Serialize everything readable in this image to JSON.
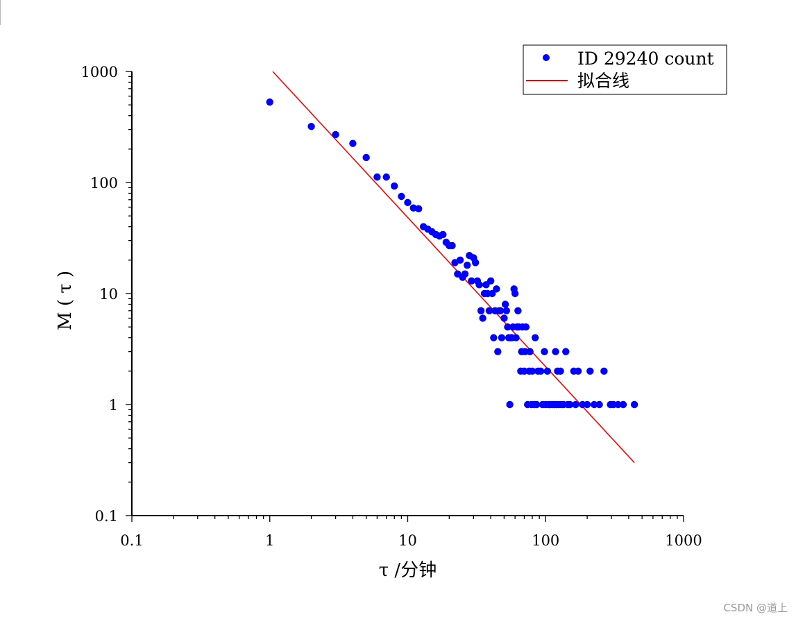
{
  "chart_data": {
    "type": "scatter",
    "xscale": "log",
    "yscale": "log",
    "xlim": [
      0.1,
      1000
    ],
    "ylim": [
      0.1,
      1000
    ],
    "xlabel": "τ /分钟",
    "ylabel": "M ( τ )",
    "xtick_labels": [
      {
        "v": 0.1,
        "t": "0.1"
      },
      {
        "v": 1,
        "t": "1"
      },
      {
        "v": 10,
        "t": "10"
      },
      {
        "v": 100,
        "t": "100"
      },
      {
        "v": 1000,
        "t": "1000"
      }
    ],
    "ytick_labels": [
      {
        "v": 0.1,
        "t": "0.1"
      },
      {
        "v": 1,
        "t": "1"
      },
      {
        "v": 10,
        "t": "10"
      },
      {
        "v": 100,
        "t": "100"
      },
      {
        "v": 1000,
        "t": "1000"
      }
    ],
    "legend_position": "top-right",
    "series": [
      {
        "name": "ID 29240 count",
        "kind": "scatter",
        "color": "#0000ff",
        "points": [
          [
            1,
            530
          ],
          [
            2,
            320
          ],
          [
            3,
            270
          ],
          [
            4,
            225
          ],
          [
            5,
            168
          ],
          [
            6,
            112
          ],
          [
            7,
            112
          ],
          [
            8,
            93
          ],
          [
            9,
            75
          ],
          [
            10,
            66
          ],
          [
            11,
            59
          ],
          [
            12,
            58
          ],
          [
            13,
            40
          ],
          [
            14,
            38
          ],
          [
            15,
            36
          ],
          [
            16,
            34
          ],
          [
            17,
            33
          ],
          [
            18,
            34
          ],
          [
            19,
            29
          ],
          [
            20,
            27
          ],
          [
            21,
            27
          ],
          [
            22,
            19
          ],
          [
            23,
            15
          ],
          [
            24,
            20
          ],
          [
            25,
            14
          ],
          [
            26,
            15
          ],
          [
            27,
            18
          ],
          [
            28,
            22
          ],
          [
            29,
            13
          ],
          [
            30,
            21
          ],
          [
            31,
            19
          ],
          [
            32,
            13
          ],
          [
            33,
            12
          ],
          [
            34,
            7
          ],
          [
            35,
            6
          ],
          [
            36,
            10
          ],
          [
            37,
            12
          ],
          [
            38,
            10
          ],
          [
            39,
            7
          ],
          [
            40,
            13
          ],
          [
            41,
            10
          ],
          [
            42,
            4
          ],
          [
            43,
            7
          ],
          [
            44,
            11
          ],
          [
            45,
            3
          ],
          [
            46,
            7
          ],
          [
            47,
            7
          ],
          [
            48,
            4
          ],
          [
            50,
            6
          ],
          [
            51,
            8
          ],
          [
            52,
            7
          ],
          [
            53,
            5
          ],
          [
            54,
            4
          ],
          [
            55,
            1
          ],
          [
            56,
            4
          ],
          [
            57,
            4
          ],
          [
            58,
            5
          ],
          [
            59,
            11
          ],
          [
            60,
            10
          ],
          [
            61,
            4
          ],
          [
            62,
            5
          ],
          [
            63,
            7
          ],
          [
            64,
            5
          ],
          [
            66,
            2
          ],
          [
            67,
            3
          ],
          [
            68,
            5
          ],
          [
            70,
            2
          ],
          [
            71,
            3
          ],
          [
            72,
            5
          ],
          [
            74,
            1
          ],
          [
            76,
            2
          ],
          [
            77,
            3
          ],
          [
            79,
            1
          ],
          [
            80,
            2
          ],
          [
            83,
            1
          ],
          [
            84,
            4
          ],
          [
            86,
            1
          ],
          [
            88,
            2
          ],
          [
            92,
            2
          ],
          [
            95,
            1
          ],
          [
            98,
            3
          ],
          [
            100,
            1
          ],
          [
            103,
            2
          ],
          [
            105,
            1
          ],
          [
            108,
            1
          ],
          [
            112,
            1
          ],
          [
            116,
            1
          ],
          [
            118,
            3
          ],
          [
            120,
            1
          ],
          [
            122,
            2
          ],
          [
            125,
            1
          ],
          [
            128,
            2
          ],
          [
            130,
            1
          ],
          [
            135,
            1
          ],
          [
            140,
            3
          ],
          [
            145,
            1
          ],
          [
            150,
            1
          ],
          [
            160,
            2
          ],
          [
            165,
            1
          ],
          [
            172,
            2
          ],
          [
            185,
            1
          ],
          [
            200,
            1
          ],
          [
            210,
            2
          ],
          [
            225,
            1
          ],
          [
            245,
            1
          ],
          [
            265,
            2
          ],
          [
            295,
            1
          ],
          [
            310,
            1
          ],
          [
            335,
            1
          ],
          [
            365,
            1
          ],
          [
            440,
            1
          ]
        ]
      },
      {
        "name": "拟合线",
        "kind": "line",
        "color": "#ff0000",
        "points": [
          [
            1.05,
            1000
          ],
          [
            440,
            0.3
          ]
        ]
      }
    ]
  },
  "watermark": "CSDN @道上"
}
